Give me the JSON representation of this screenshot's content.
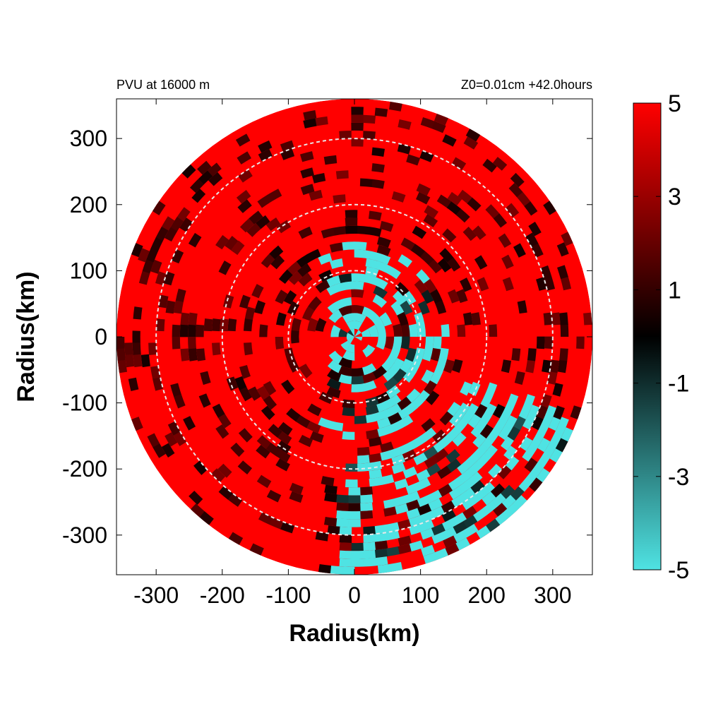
{
  "chart_data": {
    "type": "heatmap",
    "title_left": "PVU at 16000 m",
    "title_right": "Z0=0.01cm  +42.0hours",
    "xlabel": "Radius(km)",
    "ylabel": "Radius(km)",
    "xlim": [
      -360,
      360
    ],
    "ylim": [
      -360,
      360
    ],
    "xticks": [
      -300,
      -200,
      -100,
      0,
      100,
      200,
      300
    ],
    "yticks": [
      -300,
      -200,
      -100,
      0,
      100,
      200,
      300
    ],
    "xtick_labels": [
      "-300",
      "-200",
      "-100",
      "0",
      "100",
      "200",
      "300"
    ],
    "ytick_labels": [
      "300",
      "200",
      "100",
      "0",
      "-100",
      "-200",
      "-300"
    ],
    "data_radius_km": 360,
    "range_rings_km": [
      100,
      200,
      300
    ],
    "colorbar": {
      "min": -5,
      "max": 5,
      "ticks": [
        5,
        3,
        1,
        -1,
        -3,
        -5
      ],
      "tick_labels": [
        "5",
        "3",
        "1",
        "-1",
        "-3",
        "-5"
      ],
      "colors": [
        {
          "value": -5,
          "color": "#4fe3e3"
        },
        {
          "value": 0,
          "color": "#000000"
        },
        {
          "value": 5,
          "color": "#ff0000"
        }
      ]
    },
    "grid": false,
    "legend": "colorbar-right",
    "description_of_field": "Polar field mostly saturated red (>=5), with dark bands and cyan (<=-5) patches concentrated in the inner core north and east, and a band along the south-east edge."
  }
}
